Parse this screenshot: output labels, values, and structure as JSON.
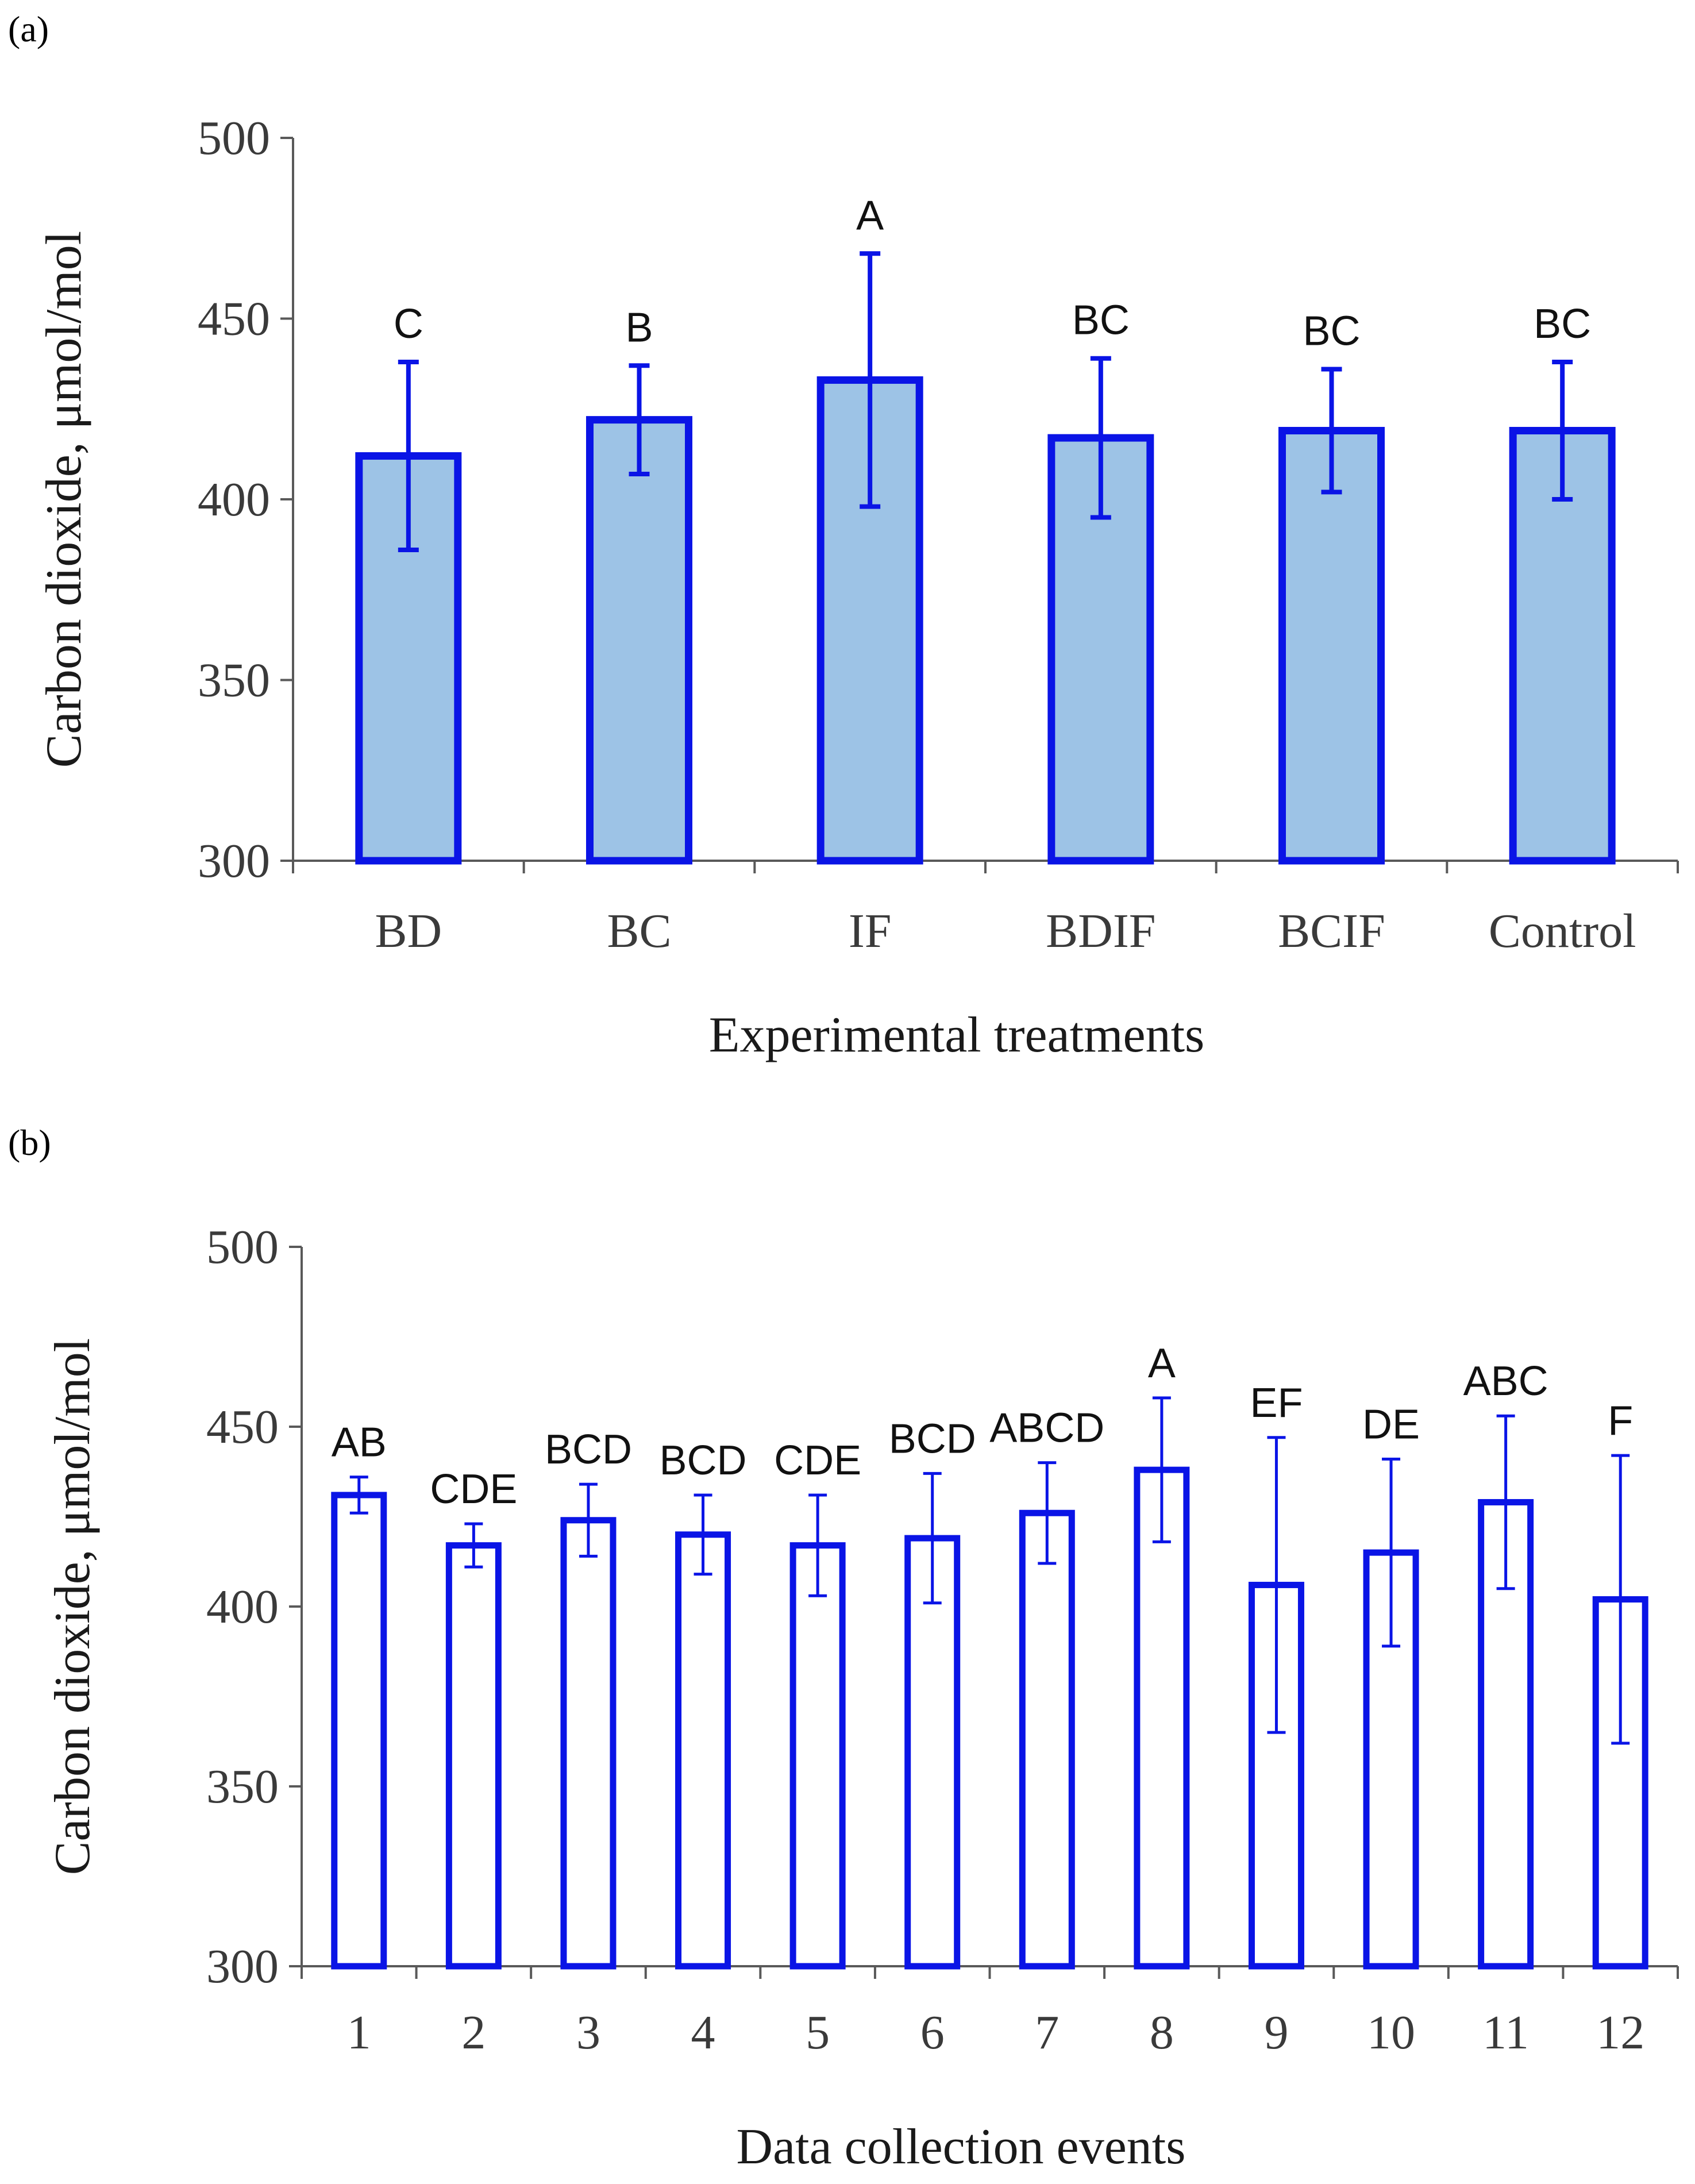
{
  "chart_data": [
    {
      "panel_label": "(a)",
      "type": "bar",
      "title": "",
      "xlabel": "Experimental treatments",
      "ylabel": "Carbon dioxide, μmol/mol",
      "ylim": [
        300,
        500
      ],
      "yticks": [
        "500",
        "450",
        "400",
        "350",
        "300"
      ],
      "categories": [
        "BD",
        "BC",
        "IF",
        "BDIF",
        "BCIF",
        "Control"
      ],
      "values": [
        412,
        422,
        433,
        417,
        419,
        419
      ],
      "error": [
        26,
        15,
        35,
        22,
        17,
        19
      ],
      "annotations": [
        "C",
        "B",
        "A",
        "BC",
        "BC",
        "BC"
      ],
      "bar_fill": "#9dc3e6",
      "bar_stroke": "#0a14e6",
      "grid": false
    },
    {
      "panel_label": "(b)",
      "type": "bar",
      "title": "",
      "xlabel": "Data collection events",
      "ylabel": "Carbon dioxide, μmol/mol",
      "ylim": [
        300,
        500
      ],
      "yticks": [
        "500",
        "450",
        "400",
        "350",
        "300"
      ],
      "categories": [
        "1",
        "2",
        "3",
        "4",
        "5",
        "6",
        "7",
        "8",
        "9",
        "10",
        "11",
        "12"
      ],
      "values": [
        431,
        417,
        424,
        420,
        417,
        419,
        426,
        438,
        406,
        415,
        429,
        402
      ],
      "error": [
        5,
        6,
        10,
        11,
        14,
        18,
        14,
        20,
        41,
        26,
        24,
        40
      ],
      "annotations": [
        "AB",
        "CDE",
        "BCD",
        "BCD",
        "CDE",
        "BCD",
        "ABCD",
        "A",
        "EF",
        "DE",
        "ABC",
        "F"
      ],
      "bar_fill": "#ffffff",
      "bar_stroke": "#0a14e6",
      "grid": false
    }
  ]
}
